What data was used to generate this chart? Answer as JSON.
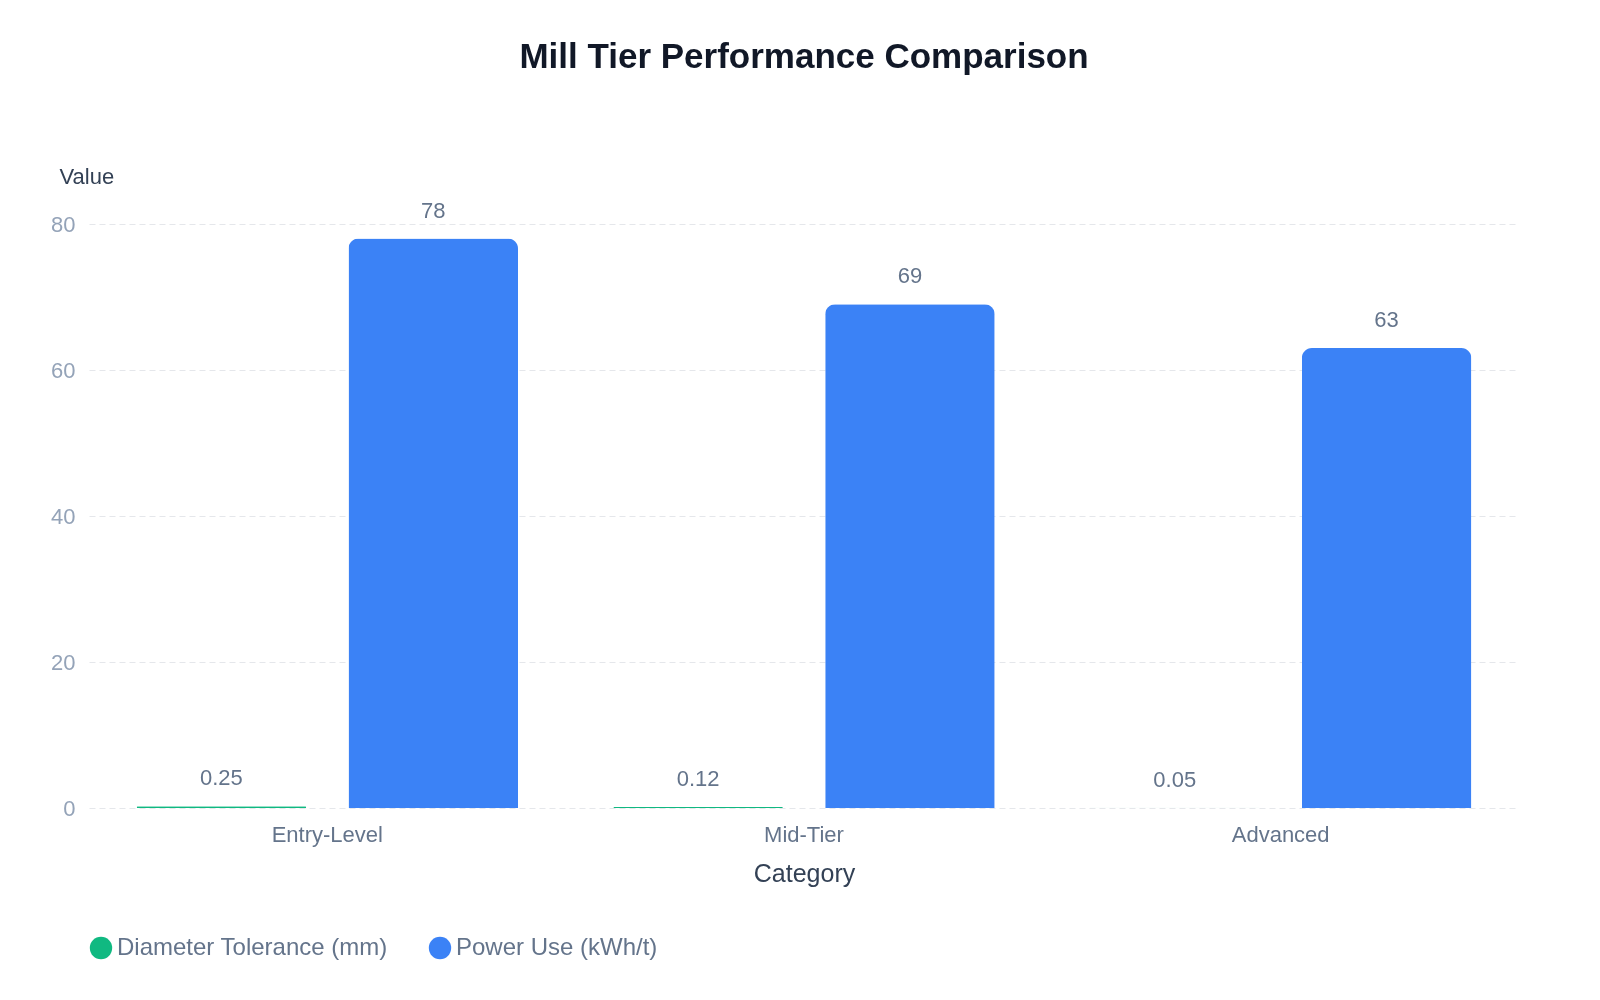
{
  "chart_data": {
    "type": "bar",
    "title": "Mill Tier Performance Comparison",
    "xlabel": "Category",
    "ylabel": "Value",
    "categories": [
      "Entry-Level",
      "Mid-Tier",
      "Advanced"
    ],
    "series": [
      {
        "name": "Diameter Tolerance (mm)",
        "color": "#10b981",
        "values": [
          0.25,
          0.12,
          0.05
        ]
      },
      {
        "name": "Power Use (kWh/t)",
        "color": "#3b82f6",
        "values": [
          78,
          69,
          63
        ]
      }
    ],
    "ylim": [
      0,
      80
    ],
    "yticks": [
      0,
      20,
      40,
      60,
      80
    ],
    "grid": "y",
    "legend": "bottom",
    "data_labels": true
  }
}
